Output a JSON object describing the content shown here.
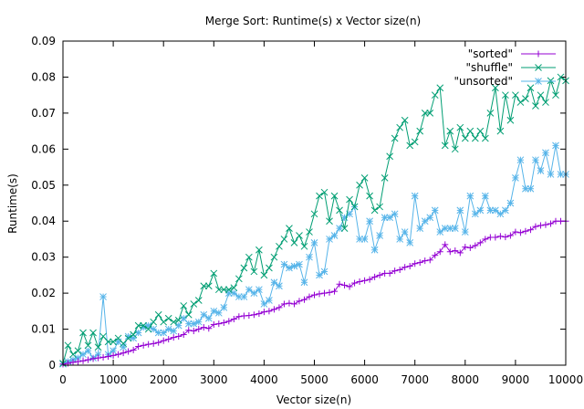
{
  "chart_data": {
    "type": "line",
    "title": "Merge Sort: Runtime(s) x Vector size(n)",
    "xlabel": "Vector size(n)",
    "ylabel": "Runtime(s)",
    "xlim": [
      0,
      10000
    ],
    "ylim": [
      0,
      0.09
    ],
    "xticks": [
      0,
      1000,
      2000,
      3000,
      4000,
      5000,
      6000,
      7000,
      8000,
      9000,
      10000
    ],
    "yticks": [
      0,
      0.01,
      0.02,
      0.03,
      0.04,
      0.05,
      0.06,
      0.07,
      0.08,
      0.09
    ],
    "ytick_labels": [
      "0",
      "0.01",
      "0.02",
      "0.03",
      "0.04",
      "0.05",
      "0.06",
      "0.07",
      "0.08",
      "0.09"
    ],
    "grid": false,
    "legend_position": "top-right",
    "series": [
      {
        "name": "\"sorted\"",
        "color": "#9400d3",
        "marker": "plus",
        "x": [
          0,
          100,
          200,
          300,
          400,
          500,
          600,
          700,
          800,
          900,
          1000,
          1100,
          1200,
          1300,
          1400,
          1500,
          1600,
          1700,
          1800,
          1900,
          2000,
          2100,
          2200,
          2300,
          2400,
          2500,
          2600,
          2700,
          2800,
          2900,
          3000,
          3100,
          3200,
          3300,
          3400,
          3500,
          3600,
          3700,
          3800,
          3900,
          4000,
          4100,
          4200,
          4300,
          4400,
          4500,
          4600,
          4700,
          4800,
          4900,
          5000,
          5100,
          5200,
          5300,
          5400,
          5500,
          5600,
          5700,
          5800,
          5900,
          6000,
          6100,
          6200,
          6300,
          6400,
          6500,
          6600,
          6700,
          6800,
          6900,
          7000,
          7100,
          7200,
          7300,
          7400,
          7500,
          7600,
          7700,
          7800,
          7900,
          8000,
          8100,
          8200,
          8300,
          8400,
          8500,
          8600,
          8700,
          8800,
          8900,
          9000,
          9100,
          9200,
          9300,
          9400,
          9500,
          9600,
          9700,
          9800,
          9900,
          10000
        ],
        "y": [
          0.0003,
          0.0005,
          0.0008,
          0.001,
          0.0012,
          0.0015,
          0.0018,
          0.002,
          0.0022,
          0.0024,
          0.0027,
          0.003,
          0.0034,
          0.0038,
          0.0042,
          0.0052,
          0.0055,
          0.0058,
          0.006,
          0.0063,
          0.0068,
          0.0072,
          0.0077,
          0.008,
          0.0085,
          0.0097,
          0.0095,
          0.01,
          0.0105,
          0.0102,
          0.0113,
          0.0115,
          0.0118,
          0.0122,
          0.0128,
          0.0135,
          0.0137,
          0.0138,
          0.014,
          0.0143,
          0.0148,
          0.015,
          0.0155,
          0.016,
          0.017,
          0.0172,
          0.017,
          0.0178,
          0.0182,
          0.019,
          0.0195,
          0.0198,
          0.02,
          0.0202,
          0.0205,
          0.0225,
          0.0222,
          0.0218,
          0.0228,
          0.0232,
          0.0235,
          0.0238,
          0.0245,
          0.025,
          0.0255,
          0.0255,
          0.0262,
          0.0265,
          0.0272,
          0.0275,
          0.0282,
          0.0285,
          0.029,
          0.0292,
          0.0305,
          0.0315,
          0.0335,
          0.0315,
          0.0318,
          0.0312,
          0.0328,
          0.0326,
          0.0332,
          0.034,
          0.035,
          0.0355,
          0.0355,
          0.0358,
          0.0356,
          0.036,
          0.037,
          0.0368,
          0.0372,
          0.0376,
          0.0385,
          0.0388,
          0.039,
          0.0393,
          0.04,
          0.04,
          0.04
        ]
      },
      {
        "name": "\"shuffle\"",
        "color": "#009e73",
        "marker": "cross",
        "x": [
          0,
          100,
          200,
          300,
          400,
          500,
          600,
          700,
          800,
          900,
          1000,
          1100,
          1200,
          1300,
          1400,
          1500,
          1600,
          1700,
          1800,
          1900,
          2000,
          2100,
          2200,
          2300,
          2400,
          2500,
          2600,
          2700,
          2800,
          2900,
          3000,
          3100,
          3200,
          3300,
          3400,
          3500,
          3600,
          3700,
          3800,
          3900,
          4000,
          4100,
          4200,
          4300,
          4400,
          4500,
          4600,
          4700,
          4800,
          4900,
          5000,
          5100,
          5200,
          5300,
          5400,
          5500,
          5600,
          5700,
          5800,
          5900,
          6000,
          6100,
          6200,
          6300,
          6400,
          6500,
          6600,
          6700,
          6800,
          6900,
          7000,
          7100,
          7200,
          7300,
          7400,
          7500,
          7600,
          7700,
          7800,
          7900,
          8000,
          8100,
          8200,
          8300,
          8400,
          8500,
          8600,
          8700,
          8800,
          8900,
          9000,
          9100,
          9200,
          9300,
          9400,
          9500,
          9600,
          9700,
          9800,
          9900,
          10000
        ],
        "y": [
          0.0005,
          0.0055,
          0.003,
          0.004,
          0.009,
          0.0055,
          0.009,
          0.005,
          0.008,
          0.0065,
          0.0065,
          0.0075,
          0.006,
          0.0075,
          0.0085,
          0.011,
          0.011,
          0.01,
          0.012,
          0.014,
          0.012,
          0.013,
          0.012,
          0.0125,
          0.0165,
          0.014,
          0.017,
          0.018,
          0.022,
          0.022,
          0.0255,
          0.021,
          0.021,
          0.021,
          0.0215,
          0.024,
          0.027,
          0.03,
          0.026,
          0.032,
          0.025,
          0.027,
          0.03,
          0.033,
          0.035,
          0.038,
          0.034,
          0.036,
          0.033,
          0.037,
          0.042,
          0.047,
          0.048,
          0.04,
          0.047,
          0.043,
          0.038,
          0.046,
          0.044,
          0.05,
          0.052,
          0.047,
          0.043,
          0.044,
          0.052,
          0.058,
          0.063,
          0.066,
          0.068,
          0.061,
          0.062,
          0.065,
          0.07,
          0.07,
          0.075,
          0.077,
          0.061,
          0.065,
          0.06,
          0.066,
          0.063,
          0.065,
          0.063,
          0.065,
          0.063,
          0.07,
          0.077,
          0.065,
          0.075,
          0.068,
          0.075,
          0.073,
          0.074,
          0.077,
          0.072,
          0.075,
          0.073,
          0.079,
          0.075,
          0.08,
          0.079
        ]
      },
      {
        "name": "\"unsorted\"",
        "color": "#56b4e9",
        "marker": "star",
        "x": [
          0,
          100,
          200,
          300,
          400,
          500,
          600,
          700,
          800,
          900,
          1000,
          1100,
          1200,
          1300,
          1400,
          1500,
          1600,
          1700,
          1800,
          1900,
          2000,
          2100,
          2200,
          2300,
          2400,
          2500,
          2600,
          2700,
          2800,
          2900,
          3000,
          3100,
          3200,
          3300,
          3400,
          3500,
          3600,
          3700,
          3800,
          3900,
          4000,
          4100,
          4200,
          4300,
          4400,
          4500,
          4600,
          4700,
          4800,
          4900,
          5000,
          5100,
          5200,
          5300,
          5400,
          5500,
          5600,
          5700,
          5800,
          5900,
          6000,
          6100,
          6200,
          6300,
          6400,
          6500,
          6600,
          6700,
          6800,
          6900,
          7000,
          7100,
          7200,
          7300,
          7400,
          7500,
          7600,
          7700,
          7800,
          7900,
          8000,
          8100,
          8200,
          8300,
          8400,
          8500,
          8600,
          8700,
          8800,
          8900,
          9000,
          9100,
          9200,
          9300,
          9400,
          9500,
          9600,
          9700,
          9800,
          9900,
          10000
        ],
        "y": [
          0.0003,
          0.001,
          0.0015,
          0.002,
          0.003,
          0.004,
          0.002,
          0.003,
          0.019,
          0.003,
          0.004,
          0.0065,
          0.005,
          0.008,
          0.0075,
          0.009,
          0.0105,
          0.011,
          0.01,
          0.009,
          0.009,
          0.01,
          0.0095,
          0.011,
          0.013,
          0.0115,
          0.0115,
          0.012,
          0.014,
          0.013,
          0.015,
          0.0145,
          0.016,
          0.02,
          0.02,
          0.019,
          0.019,
          0.021,
          0.02,
          0.021,
          0.017,
          0.018,
          0.023,
          0.022,
          0.028,
          0.027,
          0.0275,
          0.028,
          0.023,
          0.03,
          0.034,
          0.025,
          0.026,
          0.035,
          0.036,
          0.038,
          0.041,
          0.042,
          0.044,
          0.035,
          0.035,
          0.04,
          0.032,
          0.036,
          0.041,
          0.041,
          0.042,
          0.035,
          0.037,
          0.034,
          0.047,
          0.038,
          0.04,
          0.041,
          0.043,
          0.037,
          0.038,
          0.038,
          0.038,
          0.043,
          0.037,
          0.047,
          0.042,
          0.043,
          0.047,
          0.043,
          0.043,
          0.042,
          0.043,
          0.045,
          0.052,
          0.057,
          0.049,
          0.049,
          0.057,
          0.054,
          0.059,
          0.053,
          0.061,
          0.053,
          0.053
        ]
      }
    ]
  }
}
